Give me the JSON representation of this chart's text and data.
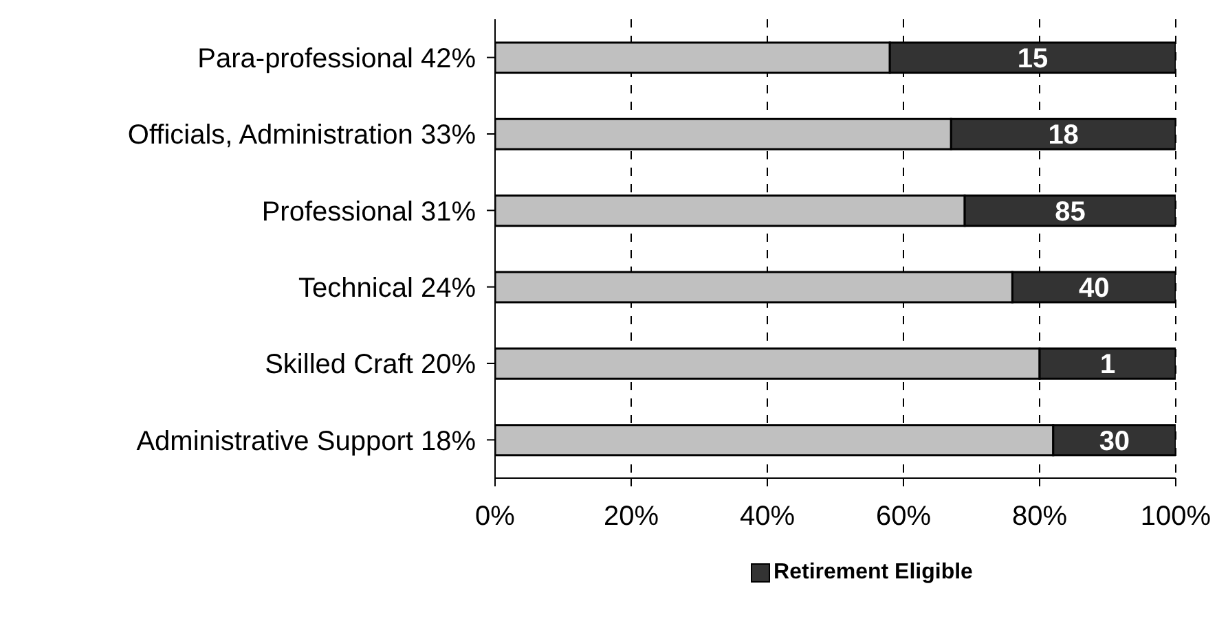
{
  "chart_data": {
    "type": "bar",
    "orientation": "horizontal",
    "stacked": true,
    "categories": [
      "Para-professional 42%",
      "Officials, Administration 33%",
      "Professional 31%",
      "Technical 24%",
      "Skilled Craft 20%",
      "Administrative Support 18%"
    ],
    "series": [
      {
        "color": "#c0c0c0",
        "values": [
          58,
          67,
          69,
          76,
          80,
          82
        ]
      },
      {
        "name": "Retirement Eligible",
        "color": "#333333",
        "values": [
          42,
          33,
          31,
          24,
          20,
          18
        ]
      }
    ],
    "annotations": [
      "15",
      "18",
      "85",
      "40",
      "1",
      "30"
    ],
    "xlim": [
      0,
      100
    ],
    "xticks": [
      {
        "value": 0,
        "label": "0%"
      },
      {
        "value": 20,
        "label": "20%"
      },
      {
        "value": 40,
        "label": "40%"
      },
      {
        "value": 60,
        "label": "60%"
      },
      {
        "value": 80,
        "label": "80%"
      },
      {
        "value": 100,
        "label": "100%"
      }
    ],
    "grid": "x",
    "legend": "bottom"
  }
}
